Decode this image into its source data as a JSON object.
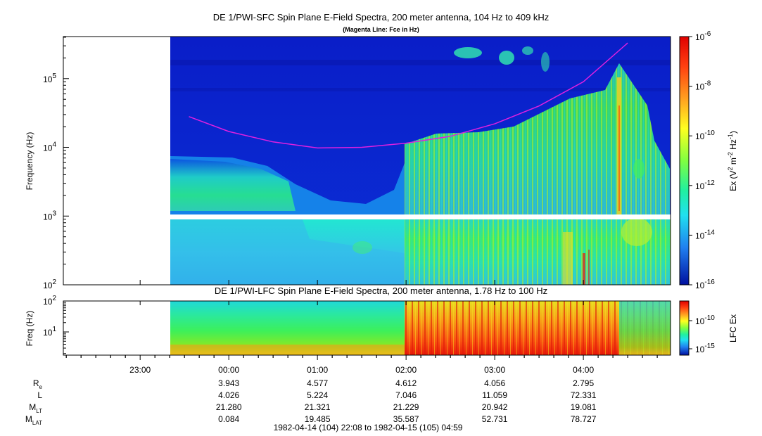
{
  "sfc": {
    "title": "DE 1/PWI-SFC  Spin Plane E-Field Spectra, 200 meter antenna, 104 Hz to 409 kHz",
    "subtitle": "(Magenta Line: Fce in Hz)",
    "ylabel": "Frequency (Hz)",
    "yticks": [
      {
        "base": "10",
        "exp": "2",
        "logv": 2
      },
      {
        "base": "10",
        "exp": "3",
        "logv": 3
      },
      {
        "base": "10",
        "exp": "4",
        "logv": 4
      },
      {
        "base": "10",
        "exp": "5",
        "logv": 5
      }
    ],
    "colorbar": {
      "label_html": "Ex (V<sup>2</sup> m<sup>-2</sup> Hz<sup>-1</sup>)",
      "label_parts": [
        "Ex (V",
        "2",
        " m",
        "-2",
        " Hz",
        "-1",
        ")"
      ],
      "ticks": [
        {
          "base": "10",
          "exp": "-6",
          "logv": -6
        },
        {
          "base": "10",
          "exp": "-8",
          "logv": -8
        },
        {
          "base": "10",
          "exp": "-10",
          "logv": -10
        },
        {
          "base": "10",
          "exp": "-12",
          "logv": -12
        },
        {
          "base": "10",
          "exp": "-14",
          "logv": -14
        },
        {
          "base": "10",
          "exp": "-16",
          "logv": -16
        }
      ]
    }
  },
  "lfc": {
    "title": "DE 1/PWI-LFC  Spin Plane E-Field Spectra, 200 meter antenna, 1.78 Hz to 100 Hz",
    "ylabel": "Freq (Hz)",
    "yticks": [
      {
        "base": "10",
        "exp": "1",
        "logv": 1
      },
      {
        "base": "10",
        "exp": "2",
        "logv": 2
      }
    ],
    "colorbar": {
      "label": "LFC Ex",
      "ticks": [
        {
          "base": "10",
          "exp": "-10",
          "logv": -10
        },
        {
          "base": "10",
          "exp": "-15",
          "logv": -15
        }
      ]
    }
  },
  "time_axis": {
    "ticks": [
      "23:00",
      "00:00",
      "01:00",
      "02:00",
      "03:00",
      "04:00"
    ],
    "range_label": "1982-04-14 (104) 22:08 to 1982-04-15 (105) 04:59"
  },
  "ephemeris": {
    "rows": [
      {
        "name": "R",
        "sub": "e",
        "values": [
          "3.943",
          "4.577",
          "4.612",
          "4.056",
          "2.795"
        ]
      },
      {
        "name": "L",
        "sub": "",
        "values": [
          "4.026",
          "5.224",
          "7.046",
          "11.059",
          "72.331"
        ]
      },
      {
        "name": "M",
        "sub": "LT",
        "values": [
          "21.280",
          "21.321",
          "21.229",
          "20.942",
          "19.081"
        ]
      },
      {
        "name": "M",
        "sub": "LAT",
        "values": [
          "0.084",
          "19.485",
          "35.587",
          "52.731",
          "78.727"
        ]
      }
    ]
  },
  "chart_data": [
    {
      "type": "heatmap",
      "title": "DE 1/PWI-SFC  Spin Plane E-Field Spectra, 200 meter antenna, 104 Hz to 409 kHz",
      "subtitle": "(Magenta Line: Fce in Hz)",
      "ylabel": "Frequency (Hz)",
      "yscale": "log",
      "ylim": [
        100,
        409000
      ],
      "xlim": [
        "1982-04-14 22:08",
        "1982-04-15 04:59"
      ],
      "data_start": "1982-04-14 23:33",
      "colorbar_label": "Ex (V^2 m^-2 Hz^-1)",
      "colorbar_range": [
        1e-16,
        1e-06
      ],
      "colorbar_scale": "log",
      "fce_line_color": "#e020e0",
      "fce_line": {
        "x": [
          "23:33",
          "00:00",
          "00:30",
          "01:00",
          "01:30",
          "02:00",
          "02:30",
          "03:00",
          "03:30",
          "04:00",
          "04:30"
        ],
        "y": [
          28000,
          17000,
          12000,
          9800,
          10000,
          11500,
          14500,
          22000,
          40000,
          90000,
          330000
        ]
      }
    },
    {
      "type": "heatmap",
      "title": "DE 1/PWI-LFC  Spin Plane E-Field Spectra, 200 meter antenna, 1.78 Hz to 100 Hz",
      "ylabel": "Freq (Hz)",
      "yscale": "log",
      "ylim": [
        1.78,
        100
      ],
      "xlim": [
        "1982-04-14 22:08",
        "1982-04-15 04:59"
      ],
      "data_start": "1982-04-14 23:33",
      "colorbar_label": "LFC Ex",
      "colorbar_scale": "log"
    }
  ]
}
